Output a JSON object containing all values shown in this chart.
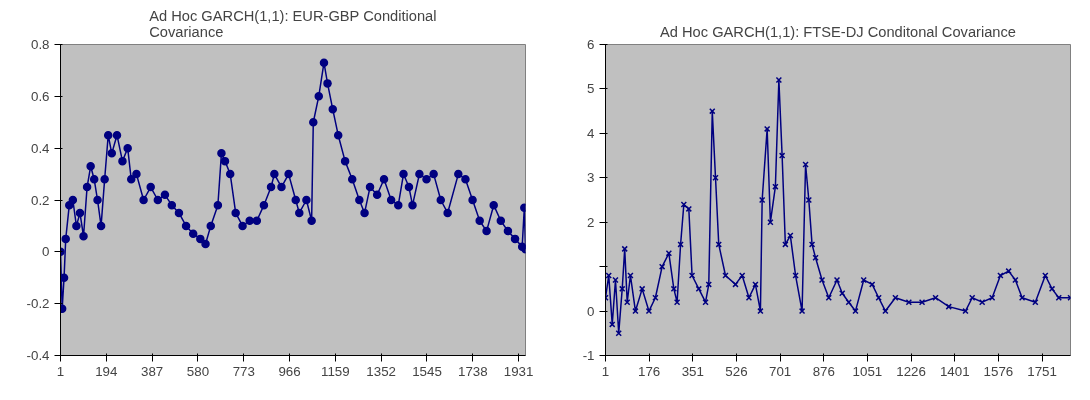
{
  "chart_data": [
    {
      "type": "line",
      "title": "Ad Hoc GARCH(1,1): EUR-GBP Conditional Covariance",
      "marker": "circle",
      "grid": false,
      "xlim": [
        1,
        1960
      ],
      "xticks": [
        1,
        194,
        387,
        580,
        773,
        966,
        1159,
        1352,
        1545,
        1738,
        1931
      ],
      "ylim": [
        -0.4,
        0.8
      ],
      "yticks": [
        -0.4,
        -0.2,
        0,
        0.2,
        0.4,
        0.6,
        0.8
      ],
      "x": [
        1,
        8,
        16,
        23,
        38,
        53,
        68,
        83,
        98,
        113,
        128,
        143,
        157,
        172,
        187,
        202,
        217,
        239,
        262,
        284,
        299,
        321,
        351,
        381,
        411,
        441,
        470,
        500,
        530,
        560,
        590,
        612,
        634,
        664,
        679,
        694,
        716,
        739,
        768,
        798,
        828,
        858,
        888,
        902,
        932,
        962,
        992,
        1007,
        1037,
        1059,
        1066,
        1089,
        1111,
        1126,
        1148,
        1171,
        1200,
        1230,
        1260,
        1282,
        1305,
        1335,
        1364,
        1394,
        1424,
        1446,
        1469,
        1484,
        1513,
        1543,
        1573,
        1603,
        1632,
        1677,
        1707,
        1737,
        1767,
        1796,
        1826,
        1856,
        1886,
        1916,
        1946,
        1955,
        1960
      ],
      "series": [
        {
          "color": "#000080",
          "values": [
            0,
            -0.22,
            -0.1,
            0.05,
            0.18,
            0.2,
            0.1,
            0.15,
            0.06,
            0.25,
            0.33,
            0.28,
            0.2,
            0.1,
            0.28,
            0.45,
            0.38,
            0.45,
            0.35,
            0.4,
            0.28,
            0.3,
            0.2,
            0.25,
            0.2,
            0.22,
            0.18,
            0.15,
            0.1,
            0.07,
            0.05,
            0.03,
            0.1,
            0.18,
            0.38,
            0.35,
            0.3,
            0.15,
            0.1,
            0.12,
            0.12,
            0.18,
            0.25,
            0.3,
            0.25,
            0.3,
            0.2,
            0.15,
            0.2,
            0.12,
            0.5,
            0.6,
            0.73,
            0.65,
            0.55,
            0.45,
            0.35,
            0.28,
            0.2,
            0.15,
            0.25,
            0.22,
            0.28,
            0.2,
            0.18,
            0.3,
            0.25,
            0.18,
            0.3,
            0.28,
            0.3,
            0.2,
            0.15,
            0.3,
            0.28,
            0.2,
            0.12,
            0.08,
            0.18,
            0.12,
            0.08,
            0.05,
            0.02,
            0.17,
            0.01
          ]
        }
      ]
    },
    {
      "type": "line",
      "title": "Ad Hoc GARCH(1,1): FTSE-DJ Conditonal Covariance",
      "marker": "cross",
      "grid": false,
      "xlim": [
        1,
        1865
      ],
      "xticks": [
        1,
        176,
        351,
        526,
        701,
        876,
        1051,
        1226,
        1401,
        1576,
        1751
      ],
      "ylim": [
        -1,
        6
      ],
      "yticks": [
        -1,
        0,
        {
          "value": 1,
          "label": null
        },
        2,
        3,
        4,
        5,
        6
      ],
      "x": [
        1,
        14,
        28,
        41,
        54,
        68,
        78,
        88,
        101,
        121,
        148,
        175,
        201,
        228,
        255,
        275,
        288,
        302,
        315,
        335,
        348,
        375,
        402,
        415,
        429,
        442,
        455,
        482,
        522,
        549,
        576,
        602,
        622,
        629,
        649,
        662,
        682,
        696,
        709,
        722,
        742,
        763,
        789,
        803,
        816,
        829,
        843,
        869,
        896,
        929,
        950,
        976,
        1003,
        1036,
        1070,
        1096,
        1123,
        1163,
        1217,
        1270,
        1324,
        1377,
        1444,
        1471,
        1511,
        1551,
        1584,
        1617,
        1644,
        1671,
        1724,
        1764,
        1791,
        1818,
        1865
      ],
      "series": [
        {
          "color": "#000080",
          "values": [
            0.3,
            0.8,
            -0.3,
            0.7,
            -0.5,
            0.5,
            1.4,
            0.2,
            0.8,
            0.0,
            0.5,
            0.0,
            0.3,
            1.0,
            1.3,
            0.5,
            0.2,
            1.5,
            2.4,
            2.3,
            0.8,
            0.5,
            0.2,
            0.6,
            4.5,
            3.0,
            1.5,
            0.8,
            0.6,
            0.8,
            0.3,
            0.6,
            0.0,
            2.5,
            4.1,
            2.0,
            2.8,
            5.2,
            3.5,
            1.5,
            1.7,
            0.8,
            0.0,
            3.3,
            2.5,
            1.5,
            1.2,
            0.7,
            0.3,
            0.7,
            0.4,
            0.2,
            0.0,
            0.7,
            0.6,
            0.3,
            0.0,
            0.3,
            0.2,
            0.2,
            0.3,
            0.1,
            0.0,
            0.3,
            0.2,
            0.3,
            0.8,
            0.9,
            0.7,
            0.3,
            0.2,
            0.8,
            0.5,
            0.3,
            0.3
          ]
        }
      ]
    }
  ]
}
